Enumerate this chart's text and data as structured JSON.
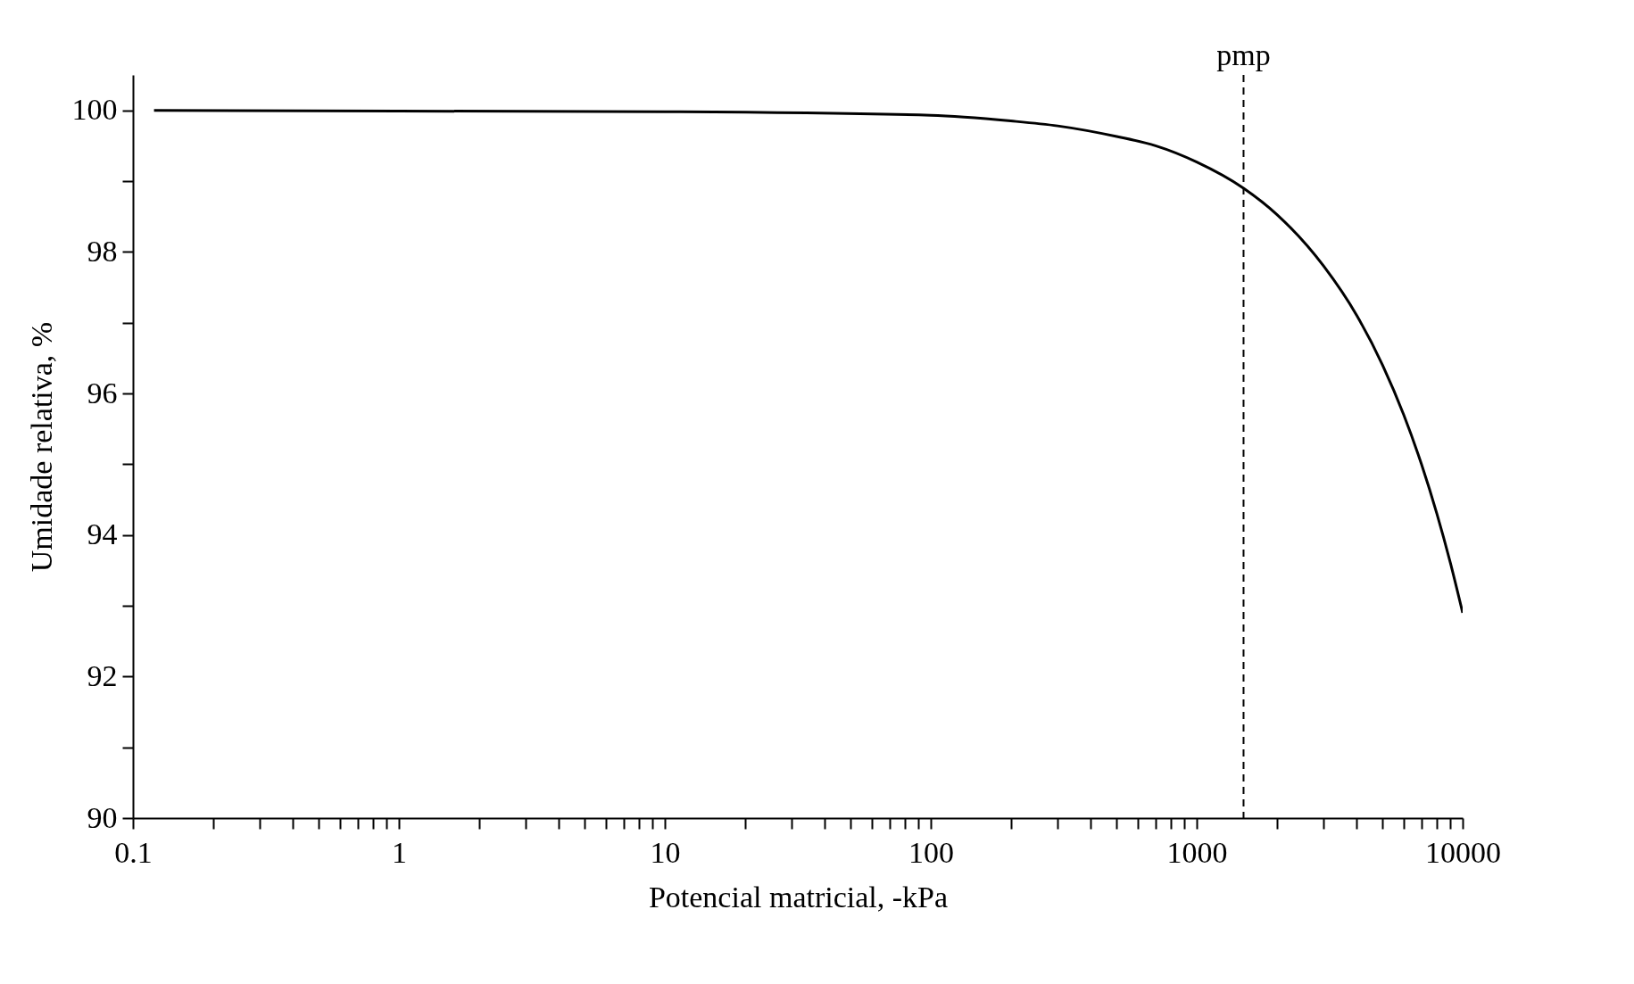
{
  "chart_data": {
    "type": "line",
    "xlabel": "Potencial matricial, -kPa",
    "ylabel": "Umidade relativa, %",
    "log": "x",
    "grid": false,
    "marker": "none",
    "line_style": "solid",
    "xlim": [
      0.1,
      10000
    ],
    "ylim": [
      90,
      100.5
    ],
    "xticks": [
      {
        "value": 0.1,
        "label": "0.1"
      },
      {
        "value": 0.2,
        "label": null
      },
      {
        "value": 0.3,
        "label": null
      },
      {
        "value": 0.4,
        "label": null
      },
      {
        "value": 0.5,
        "label": null
      },
      {
        "value": 0.6,
        "label": null
      },
      {
        "value": 0.7,
        "label": null
      },
      {
        "value": 0.8,
        "label": null
      },
      {
        "value": 0.9,
        "label": null
      },
      1,
      {
        "value": 2,
        "label": null
      },
      {
        "value": 3,
        "label": null
      },
      {
        "value": 4,
        "label": null
      },
      {
        "value": 5,
        "label": null
      },
      {
        "value": 6,
        "label": null
      },
      {
        "value": 7,
        "label": null
      },
      {
        "value": 8,
        "label": null
      },
      {
        "value": 9,
        "label": null
      },
      10,
      {
        "value": 20,
        "label": null
      },
      {
        "value": 30,
        "label": null
      },
      {
        "value": 40,
        "label": null
      },
      {
        "value": 50,
        "label": null
      },
      {
        "value": 60,
        "label": null
      },
      {
        "value": 70,
        "label": null
      },
      {
        "value": 80,
        "label": null
      },
      {
        "value": 90,
        "label": null
      },
      100,
      {
        "value": 200,
        "label": null
      },
      {
        "value": 300,
        "label": null
      },
      {
        "value": 400,
        "label": null
      },
      {
        "value": 500,
        "label": null
      },
      {
        "value": 600,
        "label": null
      },
      {
        "value": 700,
        "label": null
      },
      {
        "value": 800,
        "label": null
      },
      {
        "value": 900,
        "label": null
      },
      1000,
      {
        "value": 2000,
        "label": null
      },
      {
        "value": 3000,
        "label": null
      },
      {
        "value": 4000,
        "label": null
      },
      {
        "value": 5000,
        "label": null
      },
      {
        "value": 6000,
        "label": null
      },
      {
        "value": 7000,
        "label": null
      },
      {
        "value": 8000,
        "label": null
      },
      {
        "value": 9000,
        "label": null
      },
      10000
    ],
    "yticks": [
      90,
      {
        "value": 91,
        "label": null
      },
      92,
      {
        "value": 93,
        "label": null
      },
      94,
      {
        "value": 95,
        "label": null
      },
      96,
      {
        "value": 97,
        "label": null
      },
      98,
      {
        "value": 99,
        "label": null
      },
      100
    ],
    "series": [
      {
        "color": "#000000",
        "x": [
          0.12,
          1,
          10,
          100,
          200,
          300,
          500,
          700,
          1000,
          1500,
          2000,
          3000,
          4000,
          5000,
          6000,
          7000,
          8000,
          9000,
          10000
        ],
        "values": [
          100,
          99.99,
          99.98,
          99.93,
          99.85,
          99.78,
          99.63,
          99.5,
          99.27,
          98.9,
          98.53,
          97.8,
          97.1,
          96.4,
          95.7,
          95.0,
          94.3,
          93.6,
          92.9
        ]
      }
    ],
    "ref_lines": [
      {
        "axis": "x",
        "value": 1500,
        "label": "pmp",
        "color": "#000000",
        "line_style": "dashed"
      }
    ]
  }
}
